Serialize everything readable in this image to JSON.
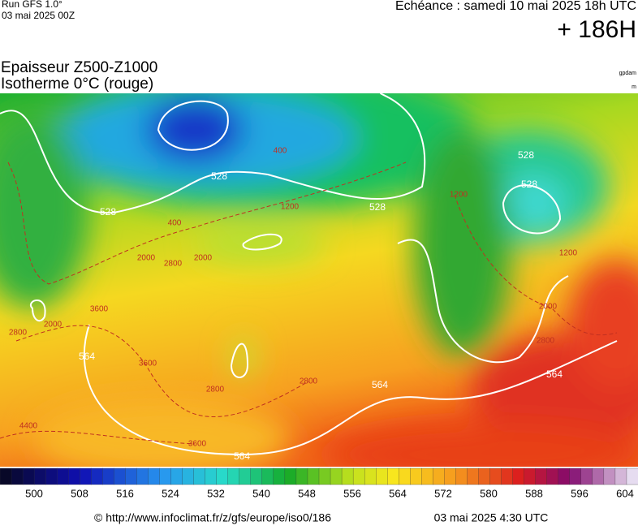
{
  "header": {
    "run": "Run GFS 1.0°",
    "run_date": "03 mai 2025 00Z",
    "echeance": "Echéance : samedi 10 mai 2025 18h UTC",
    "lead": "+ 186H",
    "title": "Epaisseur Z500-Z1000",
    "subtitle": "Isotherme 0°C (rouge)",
    "unit_thickness": "gpdam",
    "unit_iso": "m"
  },
  "map": {
    "thickness_labels": [
      "528",
      "528",
      "528",
      "528",
      "528",
      "564",
      "564",
      "564",
      "564"
    ],
    "iso0_labels": [
      "400",
      "400",
      "2000",
      "2000",
      "2000",
      "2000",
      "3600",
      "3600",
      "3600",
      "2800",
      "2800",
      "2800",
      "2800",
      "2800",
      "4400",
      "1200",
      "1200",
      "1200"
    ]
  },
  "colorbar": {
    "ticks": [
      500,
      508,
      516,
      524,
      532,
      540,
      548,
      556,
      564,
      572,
      580,
      588,
      596,
      604
    ]
  },
  "footer": {
    "url": "© http://www.infoclimat.fr/z/gfs/europe/iso0/186",
    "timestamp": "03 mai 2025  4:30 UTC"
  }
}
